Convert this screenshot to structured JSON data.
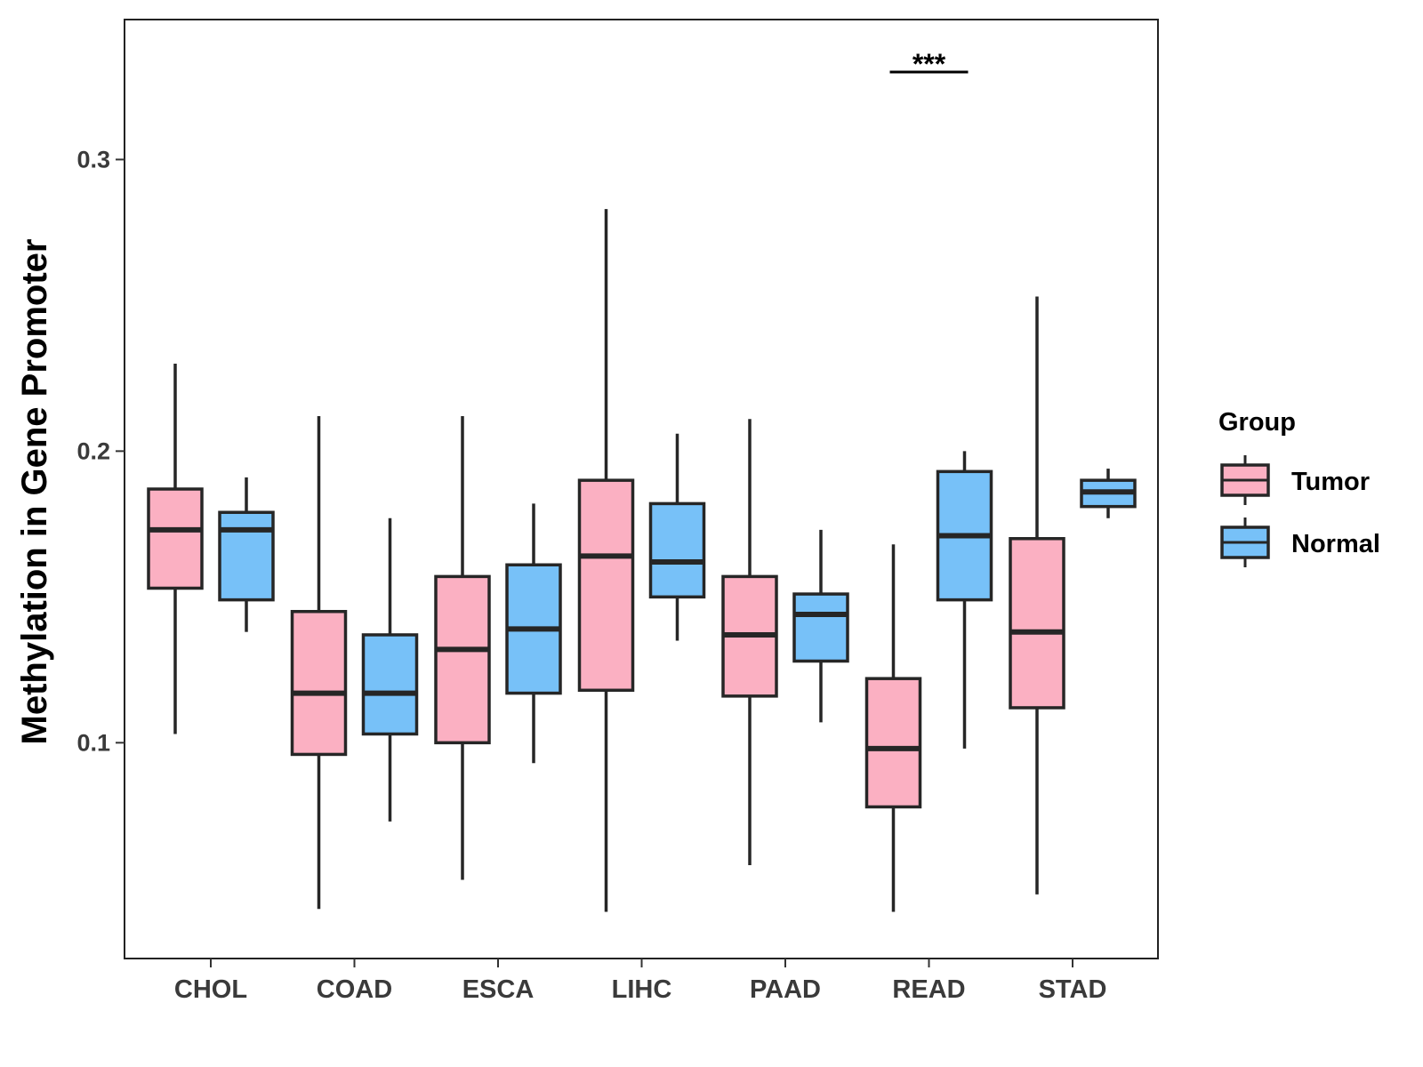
{
  "chart_data": {
    "type": "boxplot",
    "title": "",
    "xlabel": "",
    "ylabel": "Methylation in Gene Promoter",
    "ylim": [
      0.026,
      0.348
    ],
    "yticks": [
      0.1,
      0.2,
      0.3
    ],
    "ytick_labels": [
      "0.1",
      "0.2",
      "0.3"
    ],
    "categories": [
      "CHOL",
      "COAD",
      "ESCA",
      "LIHC",
      "PAAD",
      "READ",
      "STAD"
    ],
    "colors": {
      "Tumor": "#FBB0C2",
      "Normal": "#77C1F8",
      "stroke": "#262626"
    },
    "legend": {
      "title": "Group",
      "position": "right",
      "entries": [
        "Tumor",
        "Normal"
      ]
    },
    "series": [
      {
        "name": "Tumor",
        "boxes": [
          {
            "min": 0.103,
            "q1": 0.153,
            "median": 0.173,
            "q3": 0.187,
            "max": 0.23
          },
          {
            "min": 0.043,
            "q1": 0.096,
            "median": 0.117,
            "q3": 0.145,
            "max": 0.212
          },
          {
            "min": 0.053,
            "q1": 0.1,
            "median": 0.132,
            "q3": 0.157,
            "max": 0.212
          },
          {
            "min": 0.042,
            "q1": 0.118,
            "median": 0.164,
            "q3": 0.19,
            "max": 0.283
          },
          {
            "min": 0.058,
            "q1": 0.116,
            "median": 0.137,
            "q3": 0.157,
            "max": 0.211
          },
          {
            "min": 0.042,
            "q1": 0.078,
            "median": 0.098,
            "q3": 0.122,
            "max": 0.168
          },
          {
            "min": 0.048,
            "q1": 0.112,
            "median": 0.138,
            "q3": 0.17,
            "max": 0.253
          }
        ]
      },
      {
        "name": "Normal",
        "boxes": [
          {
            "min": 0.138,
            "q1": 0.149,
            "median": 0.173,
            "q3": 0.179,
            "max": 0.191
          },
          {
            "min": 0.073,
            "q1": 0.103,
            "median": 0.117,
            "q3": 0.137,
            "max": 0.177
          },
          {
            "min": 0.093,
            "q1": 0.117,
            "median": 0.139,
            "q3": 0.161,
            "max": 0.182
          },
          {
            "min": 0.135,
            "q1": 0.15,
            "median": 0.162,
            "q3": 0.182,
            "max": 0.206
          },
          {
            "min": 0.107,
            "q1": 0.128,
            "median": 0.144,
            "q3": 0.151,
            "max": 0.173
          },
          {
            "min": 0.098,
            "q1": 0.149,
            "median": 0.171,
            "q3": 0.193,
            "max": 0.2
          },
          {
            "min": 0.177,
            "q1": 0.181,
            "median": 0.186,
            "q3": 0.19,
            "max": 0.194
          }
        ]
      }
    ],
    "annotations": [
      {
        "category": "READ",
        "text": "***",
        "y": 0.33
      }
    ]
  }
}
